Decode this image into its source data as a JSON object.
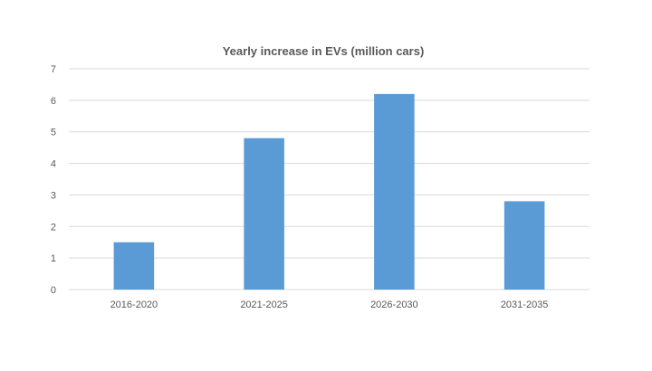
{
  "chart_data": {
    "type": "bar",
    "title": "Yearly increase in EVs (million cars)",
    "xlabel": "",
    "ylabel": "",
    "categories": [
      "2016-2020",
      "2021-2025",
      "2026-2030",
      "2031-2035"
    ],
    "values": [
      1.5,
      4.8,
      6.2,
      2.8
    ],
    "ylim": [
      0,
      7
    ],
    "yticks": [
      "0",
      "1",
      "2",
      "3",
      "4",
      "5",
      "6",
      "7"
    ],
    "grid": true,
    "legend": "none",
    "bar_color": "#5b9bd5"
  }
}
